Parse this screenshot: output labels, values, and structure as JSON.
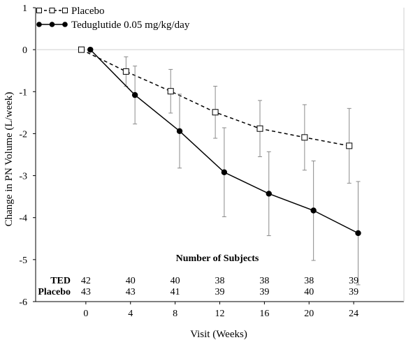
{
  "chart_data": {
    "type": "line",
    "xlabel": "Visit (Weeks)",
    "ylabel": "Change in PN Volume (L/week)",
    "x": [
      0,
      4,
      8,
      12,
      16,
      20,
      24
    ],
    "x_ticks": [
      "0",
      "4",
      "8",
      "12",
      "16",
      "20",
      "24"
    ],
    "y_ticks": [
      "1",
      "0",
      "-1",
      "-2",
      "-3",
      "-4",
      "-5",
      "-6"
    ],
    "xlim": [
      -4.5,
      28.5
    ],
    "ylim": [
      -6,
      1
    ],
    "legend_position": "top-left",
    "series": [
      {
        "name": "Placebo",
        "style": "dashed",
        "marker": "open-square",
        "color": "#000000",
        "x_offset": -0.4,
        "values": [
          0,
          -0.52,
          -0.99,
          -1.49,
          -1.88,
          -2.09,
          -2.29
        ],
        "error_bars": [
          [
            0,
            0
          ],
          [
            -0.87,
            -0.17
          ],
          [
            -1.51,
            -0.47
          ],
          [
            -2.11,
            -0.87
          ],
          [
            -2.55,
            -1.21
          ],
          [
            -2.87,
            -1.31
          ],
          [
            -3.18,
            -1.4
          ]
        ]
      },
      {
        "name": "Teduglutide 0.05 mg/kg/day",
        "style": "solid",
        "marker": "filled-circle",
        "color": "#000000",
        "x_offset": 0.4,
        "values": [
          0,
          -1.08,
          -1.94,
          -2.92,
          -3.43,
          -3.83,
          -4.37
        ],
        "error_bars": [
          [
            0,
            0
          ],
          [
            -1.77,
            -0.39
          ],
          [
            -2.82,
            -1.06
          ],
          [
            -3.98,
            -1.86
          ],
          [
            -4.43,
            -2.43
          ],
          [
            -5.02,
            -2.65
          ],
          [
            -5.6,
            -3.14
          ]
        ]
      }
    ],
    "subjects_table": {
      "title": "Number of Subjects",
      "rows": [
        {
          "label": "TED",
          "counts": [
            "42",
            "40",
            "40",
            "38",
            "38",
            "38",
            "39"
          ]
        },
        {
          "label": "Placebo",
          "counts": [
            "43",
            "43",
            "41",
            "39",
            "39",
            "40",
            "39"
          ]
        }
      ]
    },
    "reference_line_y": 0,
    "grid": false
  }
}
